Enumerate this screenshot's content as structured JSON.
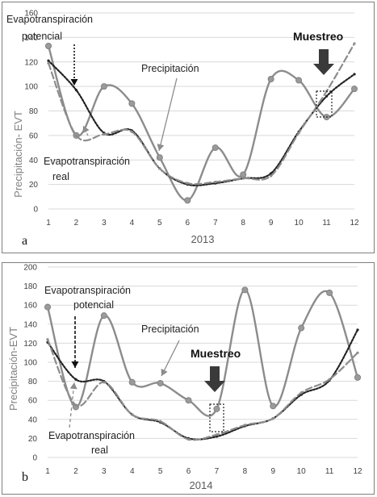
{
  "chart_data": [
    {
      "type": "line",
      "panel_label": "a",
      "xlabel": "2013",
      "ylabel": "Precipitación- EVT",
      "x": [
        1,
        2,
        3,
        4,
        5,
        6,
        7,
        8,
        9,
        10,
        11,
        12
      ],
      "ylim": [
        0,
        160
      ],
      "yticks": [
        0,
        20,
        40,
        60,
        80,
        100,
        120,
        140,
        160
      ],
      "grid": true,
      "series": [
        {
          "name": "Precipitación",
          "style": "solid",
          "color": "#8c8c8c",
          "values": [
            133,
            60,
            100,
            86,
            42,
            7,
            50,
            28,
            106,
            105,
            75,
            98
          ]
        },
        {
          "name": "Evapotranspiración potencial",
          "style": "dotted",
          "color": "#222222",
          "values": [
            121,
            97,
            62,
            64,
            33,
            20,
            21,
            25,
            29,
            63,
            92,
            110
          ]
        },
        {
          "name": "Evapotranspiración real",
          "style": "dashed",
          "color": "#8c8c8c",
          "values": [
            119,
            60,
            61,
            63,
            33,
            21,
            22,
            25,
            27,
            62,
            96,
            135
          ]
        }
      ],
      "annotations": [
        {
          "text": "Evapotranspiración",
          "target_series": "Evapotranspiración potencial"
        },
        {
          "text": "potencial"
        },
        {
          "text": "Precipitación"
        },
        {
          "text": "Evapotranspiración",
          "target_series": "Evapotranspiración real"
        },
        {
          "text": "real"
        },
        {
          "text": "Muestreo",
          "x": 11
        }
      ]
    },
    {
      "type": "line",
      "panel_label": "b",
      "xlabel": "2014",
      "ylabel": "Precipitación-EVT",
      "x": [
        1,
        2,
        3,
        4,
        5,
        6,
        7,
        8,
        9,
        10,
        11,
        12
      ],
      "ylim": [
        0,
        200
      ],
      "yticks": [
        0,
        20,
        40,
        60,
        80,
        100,
        120,
        140,
        160,
        180,
        200
      ],
      "grid": true,
      "series": [
        {
          "name": "Precipitación",
          "style": "solid",
          "color": "#8c8c8c",
          "values": [
            158,
            53,
            149,
            79,
            78,
            60,
            51,
            176,
            54,
            136,
            173,
            84
          ]
        },
        {
          "name": "Evapotranspiración potencial",
          "style": "dotted",
          "color": "#222222",
          "values": [
            121,
            82,
            80,
            45,
            37,
            20,
            22,
            33,
            41,
            66,
            81,
            134
          ]
        },
        {
          "name": "Evapotranspiración real",
          "style": "dashed",
          "color": "#8c8c8c",
          "values": [
            124,
            55,
            79,
            45,
            38,
            19,
            24,
            34,
            41,
            68,
            82,
            110
          ]
        }
      ],
      "annotations": [
        {
          "text": "Evapotranspiración",
          "target_series": "Evapotranspiración potencial"
        },
        {
          "text": "potencial"
        },
        {
          "text": "Precipitación"
        },
        {
          "text": "Muestreo",
          "x": 7
        },
        {
          "text": "Evapotranspiración",
          "target_series": "Evapotranspiración real"
        },
        {
          "text": "real"
        }
      ]
    }
  ]
}
